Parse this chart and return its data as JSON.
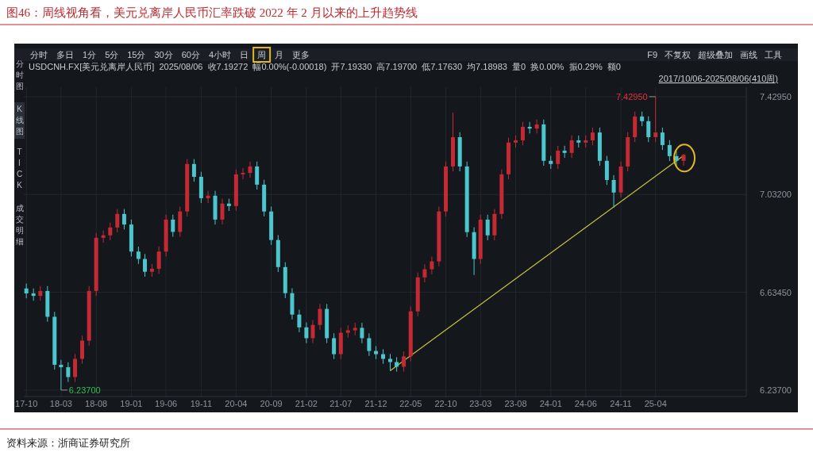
{
  "chart_data": {
    "type": "candlestick",
    "title": "图46：周线视角看，美元兑离岸人民币汇率跌破 2022 年 2 月以来的上升趋势线",
    "x": [
      "2017-10",
      "2017-11",
      "2017-12",
      "2018-01",
      "2018-02",
      "2018-03",
      "2018-04",
      "2018-05",
      "2018-06",
      "2018-07",
      "2018-08",
      "2018-09",
      "2018-10",
      "2018-11",
      "2018-12",
      "2019-01",
      "2019-02",
      "2019-03",
      "2019-04",
      "2019-05",
      "2019-06",
      "2019-07",
      "2019-08",
      "2019-09",
      "2019-10",
      "2019-11",
      "2019-12",
      "2020-01",
      "2020-02",
      "2020-03",
      "2020-04",
      "2020-05",
      "2020-06",
      "2020-07",
      "2020-08",
      "2020-09",
      "2020-10",
      "2020-11",
      "2020-12",
      "2021-01",
      "2021-02",
      "2021-03",
      "2021-04",
      "2021-05",
      "2021-06",
      "2021-07",
      "2021-08",
      "2021-09",
      "2021-10",
      "2021-11",
      "2021-12",
      "2022-01",
      "2022-02",
      "2022-03",
      "2022-04",
      "2022-05",
      "2022-06",
      "2022-07",
      "2022-08",
      "2022-09",
      "2022-10",
      "2022-11",
      "2022-12",
      "2023-01",
      "2023-02",
      "2023-03",
      "2023-04",
      "2023-05",
      "2023-06",
      "2023-07",
      "2023-08",
      "2023-09",
      "2023-10",
      "2023-11",
      "2023-12",
      "2024-01",
      "2024-02",
      "2024-03",
      "2024-04",
      "2024-05",
      "2024-06",
      "2024-07",
      "2024-08",
      "2024-09",
      "2024-10",
      "2024-11",
      "2024-12",
      "2025-01",
      "2025-02",
      "2025-03",
      "2025-04",
      "2025-05",
      "2025-06",
      "2025-07",
      "2025-08"
    ],
    "ohlc": [
      [
        6.65,
        6.67,
        6.61,
        6.63
      ],
      [
        6.63,
        6.65,
        6.6,
        6.62
      ],
      [
        6.62,
        6.66,
        6.6,
        6.64
      ],
      [
        6.64,
        6.66,
        6.515,
        6.535
      ],
      [
        6.535,
        6.555,
        6.32,
        6.34
      ],
      [
        6.34,
        6.36,
        6.237,
        6.33
      ],
      [
        6.33,
        6.35,
        6.27,
        6.29
      ],
      [
        6.29,
        6.384,
        6.27,
        6.364
      ],
      [
        6.364,
        6.458,
        6.344,
        6.438
      ],
      [
        6.438,
        6.66,
        6.418,
        6.64
      ],
      [
        6.64,
        6.876,
        6.62,
        6.856
      ],
      [
        6.856,
        6.886,
        6.836,
        6.866
      ],
      [
        6.866,
        6.918,
        6.846,
        6.898
      ],
      [
        6.898,
        6.973,
        6.878,
        6.953
      ],
      [
        6.953,
        6.973,
        6.89,
        6.91
      ],
      [
        6.91,
        6.93,
        6.78,
        6.8
      ],
      [
        6.8,
        6.82,
        6.75,
        6.77
      ],
      [
        6.77,
        6.79,
        6.698,
        6.718
      ],
      [
        6.718,
        6.75,
        6.698,
        6.73
      ],
      [
        6.73,
        6.82,
        6.71,
        6.8
      ],
      [
        6.8,
        6.95,
        6.78,
        6.93
      ],
      [
        6.93,
        6.95,
        6.86,
        6.88
      ],
      [
        6.88,
        6.983,
        6.86,
        6.963
      ],
      [
        6.963,
        7.176,
        6.943,
        7.156
      ],
      [
        7.156,
        7.176,
        7.084,
        7.104
      ],
      [
        7.104,
        7.124,
        6.997,
        7.017
      ],
      [
        7.017,
        7.047,
        6.997,
        7.027
      ],
      [
        7.027,
        7.047,
        6.91,
        6.93
      ],
      [
        6.93,
        7.015,
        6.91,
        6.995
      ],
      [
        6.995,
        7.015,
        6.965,
        6.985
      ],
      [
        6.985,
        7.134,
        6.965,
        7.114
      ],
      [
        7.114,
        7.14,
        7.094,
        7.12
      ],
      [
        7.12,
        7.166,
        7.1,
        7.146
      ],
      [
        7.146,
        7.166,
        7.052,
        7.072
      ],
      [
        7.072,
        7.092,
        6.943,
        6.963
      ],
      [
        6.963,
        6.983,
        6.827,
        6.847
      ],
      [
        6.847,
        6.867,
        6.717,
        6.737
      ],
      [
        6.737,
        6.757,
        6.611,
        6.631
      ],
      [
        6.631,
        6.651,
        6.524,
        6.544
      ],
      [
        6.544,
        6.564,
        6.472,
        6.492
      ],
      [
        6.492,
        6.512,
        6.428,
        6.448
      ],
      [
        6.448,
        6.522,
        6.428,
        6.502
      ],
      [
        6.502,
        6.587,
        6.482,
        6.567
      ],
      [
        6.567,
        6.587,
        6.428,
        6.448
      ],
      [
        6.448,
        6.468,
        6.363,
        6.383
      ],
      [
        6.383,
        6.49,
        6.363,
        6.47
      ],
      [
        6.47,
        6.5,
        6.45,
        6.48
      ],
      [
        6.48,
        6.51,
        6.46,
        6.49
      ],
      [
        6.49,
        6.51,
        6.428,
        6.448
      ],
      [
        6.448,
        6.468,
        6.376,
        6.396
      ],
      [
        6.396,
        6.416,
        6.363,
        6.383
      ],
      [
        6.383,
        6.403,
        6.344,
        6.364
      ],
      [
        6.364,
        6.384,
        6.316,
        6.351
      ],
      [
        6.351,
        6.371,
        6.312,
        6.332
      ],
      [
        6.332,
        6.394,
        6.312,
        6.374
      ],
      [
        6.374,
        6.577,
        6.354,
        6.557
      ],
      [
        6.557,
        6.715,
        6.537,
        6.695
      ],
      [
        6.695,
        6.748,
        6.675,
        6.728
      ],
      [
        6.728,
        6.78,
        6.708,
        6.76
      ],
      [
        6.76,
        6.983,
        6.74,
        6.963
      ],
      [
        6.963,
        7.166,
        6.943,
        7.146
      ],
      [
        7.146,
        7.365,
        7.126,
        7.265
      ],
      [
        7.265,
        7.285,
        7.126,
        7.146
      ],
      [
        7.146,
        7.166,
        6.859,
        6.879
      ],
      [
        6.879,
        6.899,
        6.705,
        6.77
      ],
      [
        6.77,
        6.95,
        6.75,
        6.93
      ],
      [
        6.93,
        6.95,
        6.846,
        6.866
      ],
      [
        6.866,
        6.973,
        6.846,
        6.953
      ],
      [
        6.953,
        7.134,
        6.933,
        7.114
      ],
      [
        7.114,
        7.263,
        7.094,
        7.243
      ],
      [
        7.243,
        7.272,
        7.223,
        7.252
      ],
      [
        7.252,
        7.327,
        7.232,
        7.307
      ],
      [
        7.307,
        7.327,
        7.28,
        7.3
      ],
      [
        7.3,
        7.337,
        7.28,
        7.317
      ],
      [
        7.317,
        7.337,
        7.149,
        7.169
      ],
      [
        7.169,
        7.189,
        7.136,
        7.156
      ],
      [
        7.156,
        7.23,
        7.136,
        7.21
      ],
      [
        7.21,
        7.23,
        7.181,
        7.201
      ],
      [
        7.201,
        7.272,
        7.181,
        7.252
      ],
      [
        7.252,
        7.272,
        7.223,
        7.243
      ],
      [
        7.243,
        7.272,
        7.223,
        7.252
      ],
      [
        7.252,
        7.304,
        7.232,
        7.284
      ],
      [
        7.284,
        7.304,
        7.149,
        7.169
      ],
      [
        7.169,
        7.189,
        7.071,
        7.091
      ],
      [
        7.091,
        7.111,
        6.979,
        7.04
      ],
      [
        7.04,
        7.166,
        7.02,
        7.146
      ],
      [
        7.146,
        7.285,
        7.126,
        7.265
      ],
      [
        7.265,
        7.369,
        7.245,
        7.349
      ],
      [
        7.349,
        7.369,
        7.31,
        7.33
      ],
      [
        7.33,
        7.35,
        7.245,
        7.265
      ],
      [
        7.265,
        7.4295,
        7.245,
        7.284
      ],
      [
        7.284,
        7.304,
        7.213,
        7.233
      ],
      [
        7.233,
        7.253,
        7.168,
        7.188
      ],
      [
        7.188,
        7.208,
        7.149,
        7.169
      ],
      [
        7.169,
        7.197,
        7.149,
        7.193
      ]
    ],
    "colors": [
      "#4cc6cc",
      "#4cc6cc",
      "#c42a33",
      "#4cc6cc",
      "#4cc6cc",
      "#4cc6cc",
      "#4cc6cc",
      "#c42a33",
      "#c42a33",
      "#c42a33",
      "#c42a33",
      "#c42a33",
      "#c42a33",
      "#c42a33",
      "#4cc6cc",
      "#4cc6cc",
      "#4cc6cc",
      "#4cc6cc",
      "#c42a33",
      "#c42a33",
      "#c42a33",
      "#4cc6cc",
      "#c42a33",
      "#c42a33",
      "#4cc6cc",
      "#4cc6cc",
      "#c42a33",
      "#4cc6cc",
      "#c42a33",
      "#4cc6cc",
      "#c42a33",
      "#c42a33",
      "#c42a33",
      "#4cc6cc",
      "#4cc6cc",
      "#4cc6cc",
      "#4cc6cc",
      "#4cc6cc",
      "#4cc6cc",
      "#4cc6cc",
      "#4cc6cc",
      "#c42a33",
      "#c42a33",
      "#4cc6cc",
      "#4cc6cc",
      "#c42a33",
      "#c42a33",
      "#c42a33",
      "#4cc6cc",
      "#4cc6cc",
      "#4cc6cc",
      "#4cc6cc",
      "#4cc6cc",
      "#4cc6cc",
      "#c42a33",
      "#c42a33",
      "#c42a33",
      "#c42a33",
      "#c42a33",
      "#c42a33",
      "#c42a33",
      "#c42a33",
      "#4cc6cc",
      "#4cc6cc",
      "#4cc6cc",
      "#c42a33",
      "#4cc6cc",
      "#c42a33",
      "#c42a33",
      "#c42a33",
      "#c42a33",
      "#c42a33",
      "#4cc6cc",
      "#c42a33",
      "#4cc6cc",
      "#4cc6cc",
      "#c42a33",
      "#4cc6cc",
      "#c42a33",
      "#4cc6cc",
      "#c42a33",
      "#c42a33",
      "#4cc6cc",
      "#4cc6cc",
      "#4cc6cc",
      "#c42a33",
      "#c42a33",
      "#c42a33",
      "#4cc6cc",
      "#4cc6cc",
      "#c42a33",
      "#4cc6cc",
      "#4cc6cc",
      "#4cc6cc",
      "#c42a33"
    ],
    "series": [
      {
        "type": "line",
        "x": [
          "2022-02",
          "2025-08"
        ],
        "values": [
          6.316,
          7.19
        ],
        "color": "#c9c23e"
      }
    ],
    "xlim": [
      "2017-09-20",
      "2026-05-01"
    ],
    "xticks": [
      {
        "value": "2017-10",
        "label": "17-10"
      },
      {
        "value": "2018-03",
        "label": "18-03"
      },
      {
        "value": "2018-08",
        "label": "18-08"
      },
      {
        "value": "2019-01",
        "label": "19-01"
      },
      {
        "value": "2019-06",
        "label": "19-06"
      },
      {
        "value": "2019-11",
        "label": "19-11"
      },
      {
        "value": "2020-04",
        "label": "20-04"
      },
      {
        "value": "2020-09",
        "label": "20-09"
      },
      {
        "value": "2021-02",
        "label": "21-02"
      },
      {
        "value": "2021-07",
        "label": "21-07"
      },
      {
        "value": "2021-12",
        "label": "21-12"
      },
      {
        "value": "2022-05",
        "label": "22-05"
      },
      {
        "value": "2022-10",
        "label": "22-10"
      },
      {
        "value": "2023-03",
        "label": "23-03"
      },
      {
        "value": "2023-08",
        "label": "23-08"
      },
      {
        "value": "2024-01",
        "label": "24-01"
      },
      {
        "value": "2024-06",
        "label": "24-06"
      },
      {
        "value": "2024-11",
        "label": "24-11"
      },
      {
        "value": "2025-04",
        "label": "25-04"
      }
    ],
    "ylim": [
      6.211,
      7.468
    ],
    "yticks": [
      {
        "value": 6.237,
        "label": "6.23700"
      },
      {
        "value": 6.6345,
        "label": "6.63450"
      },
      {
        "value": 7.032,
        "label": "7.03200"
      },
      {
        "value": 7.4295,
        "label": "7.42950"
      }
    ],
    "grid": true,
    "annotations": [
      "资料来源：浙商证券研究所",
      "分时",
      "多日",
      "1分",
      "5分",
      "15分",
      "30分",
      "60分",
      "4小时",
      "日",
      "周",
      "月",
      "更多",
      "F9",
      "不复权",
      "超级叠加",
      "画线",
      "工具",
      "USDCNH.FX[美元兑离岸人民币]  2025/08/06  收7.19272  幅0.00%(-0.00018)  开7.19330  高7.19700  低7.17630  均7.18983  量0  换0.00%  振0.29%  额0",
      "2017/10/06-2025/08/06(410周)",
      "分时图",
      "K线图",
      "TICK",
      "成交明细",
      {
        "text": "7.42950",
        "x": "2025-04",
        "y": 7.4295
      },
      {
        "text": "6.23700",
        "x": "2018-03",
        "y": 6.237
      }
    ]
  }
}
